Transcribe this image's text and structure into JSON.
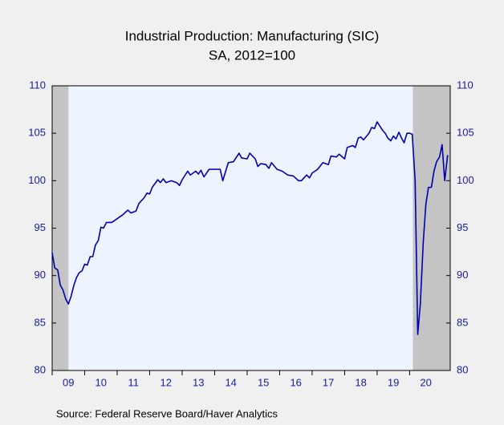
{
  "chart_data": {
    "type": "line",
    "title": "Industrial Production: Manufacturing (SIC)",
    "subtitle": "SA, 2012=100",
    "source": "Source:  Federal Reserve Board/Haver Analytics",
    "x": [
      2009.0,
      2009.08,
      2009.17,
      2009.25,
      2009.33,
      2009.42,
      2009.5,
      2009.58,
      2009.67,
      2009.75,
      2009.83,
      2009.92,
      2010.0,
      2010.08,
      2010.17,
      2010.25,
      2010.33,
      2010.42,
      2010.5,
      2010.58,
      2010.67,
      2010.83,
      2010.92,
      2011.0,
      2011.17,
      2011.33,
      2011.42,
      2011.58,
      2011.67,
      2011.83,
      2011.92,
      2012.0,
      2012.08,
      2012.25,
      2012.33,
      2012.42,
      2012.5,
      2012.67,
      2012.83,
      2012.92,
      2013.0,
      2013.17,
      2013.25,
      2013.42,
      2013.5,
      2013.58,
      2013.67,
      2013.83,
      2014.0,
      2014.17,
      2014.25,
      2014.42,
      2014.58,
      2014.75,
      2014.83,
      2015.0,
      2015.08,
      2015.25,
      2015.33,
      2015.42,
      2015.58,
      2015.67,
      2015.75,
      2015.92,
      2016.08,
      2016.25,
      2016.42,
      2016.58,
      2016.67,
      2016.83,
      2016.92,
      2017.0,
      2017.17,
      2017.33,
      2017.5,
      2017.58,
      2017.75,
      2017.83,
      2018.0,
      2018.08,
      2018.25,
      2018.33,
      2018.42,
      2018.5,
      2018.58,
      2018.75,
      2018.83,
      2018.92,
      2019.0,
      2019.17,
      2019.25,
      2019.33,
      2019.42,
      2019.5,
      2019.58,
      2019.67,
      2019.75,
      2019.83,
      2019.92,
      2020.0,
      2020.08,
      2020.17,
      2020.25,
      2020.33,
      2020.42,
      2020.5,
      2020.58,
      2020.67,
      2020.75,
      2020.83,
      2020.92,
      2021.0,
      2021.08,
      2021.17
    ],
    "series": [
      {
        "color": "#0000b0",
        "values": [
          92.4,
          90.8,
          90.6,
          89.0,
          88.5,
          87.5,
          87.0,
          87.8,
          89.0,
          89.8,
          90.3,
          90.5,
          91.2,
          91.1,
          92.0,
          92.0,
          93.2,
          93.7,
          95.1,
          95.0,
          95.6,
          95.6,
          95.8,
          96.0,
          96.4,
          96.9,
          96.6,
          96.8,
          97.6,
          98.2,
          98.7,
          98.6,
          99.3,
          100.1,
          99.8,
          100.2,
          99.8,
          100.0,
          99.8,
          99.5,
          100.1,
          101.0,
          100.6,
          101.0,
          100.7,
          101.1,
          100.4,
          101.2,
          101.2,
          101.2,
          100.0,
          101.9,
          102.0,
          102.9,
          102.4,
          102.3,
          102.9,
          102.3,
          101.5,
          101.8,
          101.7,
          101.3,
          101.9,
          101.2,
          101.0,
          100.6,
          100.5,
          100.0,
          100.0,
          100.6,
          100.3,
          100.8,
          101.2,
          101.9,
          101.7,
          102.6,
          102.5,
          102.8,
          102.3,
          103.5,
          103.7,
          103.5,
          104.5,
          104.6,
          104.3,
          105.0,
          105.6,
          105.5,
          106.2,
          105.3,
          105.0,
          104.5,
          104.2,
          104.7,
          104.4,
          105.1,
          104.5,
          104.0,
          105.0,
          105.0,
          104.9,
          100.0,
          83.8,
          87.0,
          93.5,
          97.5,
          99.3,
          99.3,
          101.0,
          102.0,
          102.5,
          103.8,
          100.0,
          102.7
        ]
      }
    ],
    "xlim": [
      2009,
      2021.25
    ],
    "xticks": [
      {
        "value": 2009.5,
        "label": "09"
      },
      {
        "value": 2010.5,
        "label": "10"
      },
      {
        "value": 2011.5,
        "label": "11"
      },
      {
        "value": 2012.5,
        "label": "12"
      },
      {
        "value": 2013.5,
        "label": "13"
      },
      {
        "value": 2014.5,
        "label": "14"
      },
      {
        "value": 2015.5,
        "label": "15"
      },
      {
        "value": 2016.5,
        "label": "16"
      },
      {
        "value": 2017.5,
        "label": "17"
      },
      {
        "value": 2018.5,
        "label": "18"
      },
      {
        "value": 2019.5,
        "label": "19"
      },
      {
        "value": 2020.5,
        "label": "20"
      }
    ],
    "ylim": [
      80,
      110
    ],
    "yticks": [
      80,
      85,
      90,
      95,
      100,
      105,
      110
    ],
    "shaded_regions": [
      [
        2009.0,
        2009.5
      ],
      [
        2020.1,
        2021.25
      ]
    ],
    "shade_color": "#c4c4c4",
    "plot_background": "#eef4ff"
  }
}
